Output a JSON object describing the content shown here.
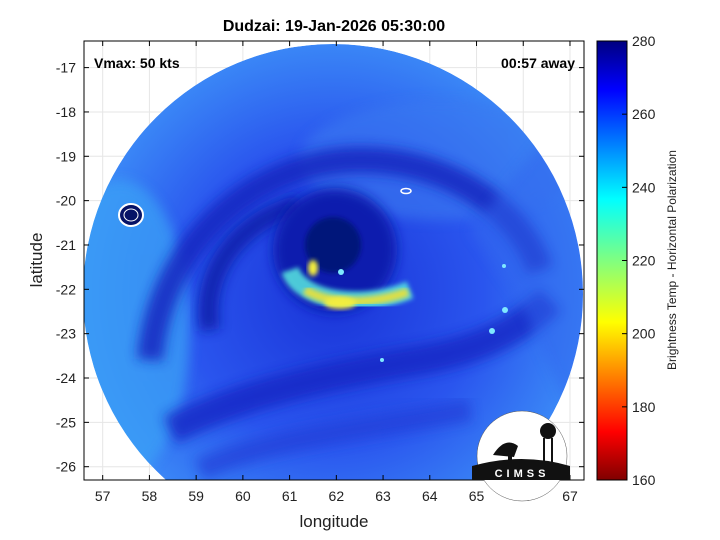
{
  "figure": {
    "title": "Dudzai: 19-Jan-2026 05:30:00",
    "vmax_text": "Vmax: 50 kts",
    "time_offset_text": "00:57 away",
    "xlabel": "longitude",
    "ylabel": "latitude",
    "colorbar_label": "Brightness Temp - Horizontal Polarization",
    "logo_text": "CIMSS"
  },
  "map_data": {
    "type": "swath_image",
    "xlim": [
      56.6,
      67.3
    ],
    "ylim": [
      -26.3,
      -16.4
    ],
    "x_ticks": [
      "57",
      "58",
      "59",
      "60",
      "61",
      "62",
      "63",
      "64",
      "65",
      "66",
      "67"
    ],
    "y_ticks": [
      "-17",
      "-18",
      "-19",
      "-20",
      "-21",
      "-22",
      "-23",
      "-24",
      "-25",
      "-26"
    ],
    "storm_center": [
      61.9,
      -21.2
    ],
    "swath_center": [
      62.1,
      -21.4
    ],
    "swath_radius_deg": 5.3,
    "colorbar": {
      "min": 160,
      "max": 280,
      "ticks": [
        "160",
        "180",
        "200",
        "220",
        "240",
        "260",
        "280"
      ],
      "colormap": "jet"
    }
  },
  "colors": {
    "background_swath": "#2a4fe8",
    "dark_band": "#0f1fb0",
    "warm_band": "#e4e040",
    "frame": "#000000"
  }
}
